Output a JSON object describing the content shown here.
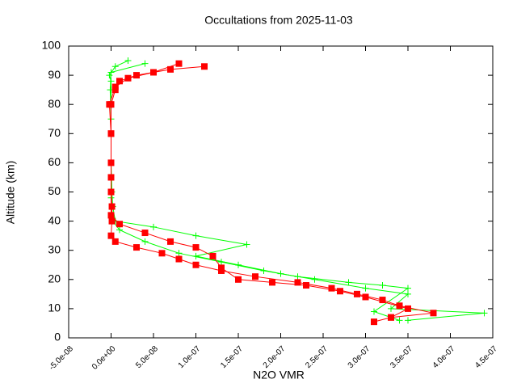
{
  "chart_data": {
    "type": "scatter",
    "title": "Occultations from 2025-11-03",
    "x_label": "N2O VMR",
    "y_label": "Altitude (km)",
    "xlim": [
      -5e-08,
      4.5e-07
    ],
    "xticks": [
      {
        "value": -5e-08,
        "label": "-5.0e-08"
      },
      {
        "value": 0,
        "label": "0.0e+00"
      },
      {
        "value": 5e-08,
        "label": "5.0e-08"
      },
      {
        "value": 1e-07,
        "label": "1.0e-07"
      },
      {
        "value": 1.5e-07,
        "label": "1.5e-07"
      },
      {
        "value": 2e-07,
        "label": "2.0e-07"
      },
      {
        "value": 2.5e-07,
        "label": "2.5e-07"
      },
      {
        "value": 3e-07,
        "label": "3.0e-07"
      },
      {
        "value": 3.5e-07,
        "label": "3.5e-07"
      },
      {
        "value": 4e-07,
        "label": "4.0e-07"
      },
      {
        "value": 4.5e-07,
        "label": "4.5e-07"
      }
    ],
    "ylim": [
      0,
      100
    ],
    "yticks": [
      0,
      10,
      20,
      30,
      40,
      50,
      60,
      70,
      80,
      90,
      100
    ],
    "series": [
      {
        "color": "#00ff00",
        "marker": "plus",
        "x": [
          3.5e-07,
          4.4e-07,
          3.3e-07,
          3.5e-07,
          3e-07,
          2.4e-07,
          2e-07,
          1.5e-07,
          1e-07,
          1.6e-07,
          1e-07,
          5e-08,
          5e-09,
          2e-09,
          1e-09,
          0,
          0,
          0,
          0,
          -2e-09,
          5e-09,
          2e-08
        ],
        "values": [
          6,
          8.5,
          10,
          15,
          17,
          20,
          22,
          25,
          28,
          32,
          35,
          38,
          40,
          45,
          50,
          60,
          70,
          80,
          88,
          90,
          93,
          95
        ]
      },
      {
        "color": "#00ff00",
        "marker": "plus",
        "x": [
          3.4e-07,
          3.1e-07,
          3.5e-07,
          3.2e-07,
          2.8e-07,
          2.2e-07,
          1.8e-07,
          1.3e-07,
          8e-08,
          4e-08,
          1e-08,
          2e-09,
          0,
          0,
          0,
          -1e-09,
          0,
          4e-08
        ],
        "values": [
          6,
          9,
          17,
          18,
          19,
          21,
          23,
          26,
          29,
          33,
          37,
          40,
          48,
          60,
          75,
          85,
          91,
          94
        ]
      },
      {
        "color": "#ff0000",
        "marker": "square",
        "x": [
          3.1e-07,
          3.3e-07,
          3.8e-07,
          3.4e-07,
          3.2e-07,
          2.9e-07,
          2.6e-07,
          2.2e-07,
          1.7e-07,
          1.3e-07,
          1e-07,
          8e-08,
          6e-08,
          3e-08,
          5e-09,
          0,
          1e-09,
          1e-09,
          0,
          0,
          0,
          0,
          5e-09,
          1e-08,
          3e-08,
          7e-08,
          1.1e-07
        ],
        "values": [
          5.5,
          7,
          8.5,
          11,
          13,
          15,
          17,
          19,
          21,
          23,
          25,
          27,
          29,
          31,
          33,
          35,
          40,
          45,
          50,
          60,
          70,
          80,
          85,
          88,
          90,
          92,
          93
        ]
      },
      {
        "color": "#ff0000",
        "marker": "square",
        "x": [
          3.3e-07,
          3.5e-07,
          3e-07,
          2.7e-07,
          2.3e-07,
          1.9e-07,
          1.5e-07,
          1.3e-07,
          1.2e-07,
          1e-07,
          7e-08,
          4e-08,
          1e-08,
          0,
          0,
          0,
          -2e-09,
          5e-09,
          2e-08,
          5e-08,
          8e-08
        ],
        "values": [
          7,
          10,
          14,
          16,
          18,
          19,
          20,
          24,
          28,
          31,
          33,
          36,
          39,
          42,
          55,
          70,
          80,
          86,
          89,
          91,
          94
        ]
      }
    ]
  }
}
